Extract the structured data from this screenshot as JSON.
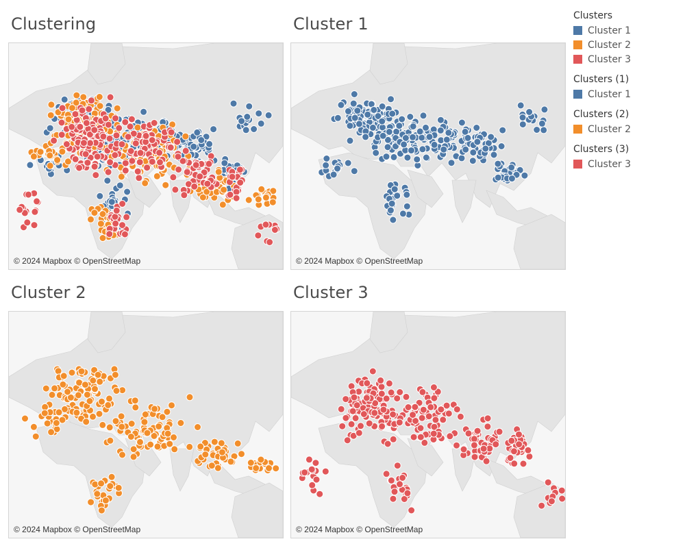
{
  "colors": {
    "cluster_1": "#4e79a7",
    "cluster_2": "#f28e2b",
    "cluster_3": "#e15759",
    "land": "#e4e4e4",
    "water": "#f6f6f6",
    "border": "#cfcfcf"
  },
  "maps": [
    {
      "title": "Clustering",
      "attribution": "© 2024 Mapbox © OpenStreetMap",
      "series": [
        "cluster_1",
        "cluster_2",
        "cluster_3"
      ]
    },
    {
      "title": "Cluster 1",
      "attribution": "© 2024 Mapbox © OpenStreetMap",
      "series": [
        "cluster_1"
      ]
    },
    {
      "title": "Cluster 2",
      "attribution": "© 2024 Mapbox © OpenStreetMap",
      "series": [
        "cluster_2"
      ]
    },
    {
      "title": "Cluster 3",
      "attribution": "© 2024 Mapbox © OpenStreetMap",
      "series": [
        "cluster_3"
      ]
    }
  ],
  "legend": [
    {
      "title": "Clusters",
      "items": [
        {
          "label": "Cluster 1",
          "color": "#4e79a7"
        },
        {
          "label": "Cluster 2",
          "color": "#f28e2b"
        },
        {
          "label": "Cluster 3",
          "color": "#e15759"
        }
      ]
    },
    {
      "title": "Clusters (1)",
      "items": [
        {
          "label": "Cluster 1",
          "color": "#4e79a7"
        }
      ]
    },
    {
      "title": "Clusters (2)",
      "items": [
        {
          "label": "Cluster 2",
          "color": "#f28e2b"
        }
      ]
    },
    {
      "title": "Clusters (3)",
      "items": [
        {
          "label": "Cluster 3",
          "color": "#e15759"
        }
      ]
    }
  ]
}
